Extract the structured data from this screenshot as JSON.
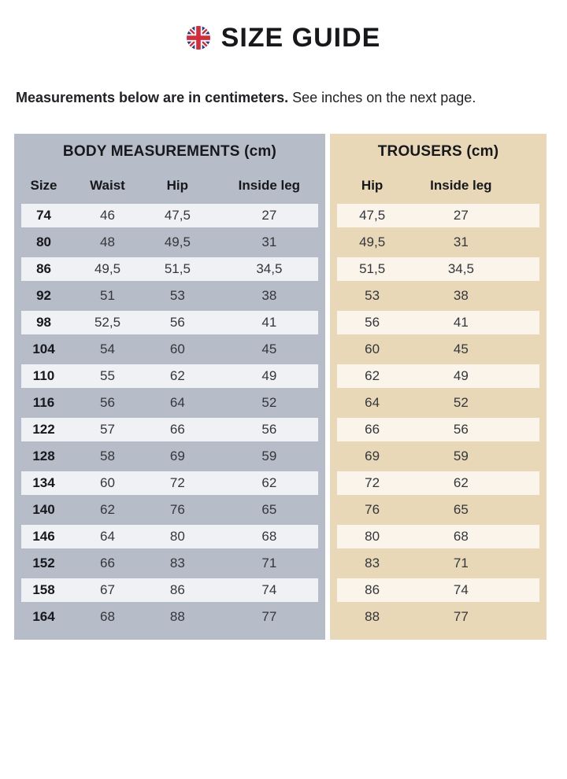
{
  "header": {
    "title": "SIZE GUIDE",
    "flag_icon": "uk-flag-round-icon"
  },
  "intro": {
    "bold": "Measurements below are in centimeters.",
    "regular": " See inches on the next page."
  },
  "colors": {
    "body_section_bg": "#b6bcc8",
    "body_row_stripe": "#eff1f4",
    "trousers_section_bg": "#e9d8b8",
    "trousers_row_stripe": "#faf4ea",
    "ink": "#17181b",
    "flag_blue": "#26397a",
    "flag_red": "#d22d3f"
  },
  "table": {
    "body_section_title": "BODY MEASUREMENTS (cm)",
    "trousers_section_title": "TROUSERS (cm)",
    "body_columns": [
      "Size",
      "Waist",
      "Hip",
      "Inside leg"
    ],
    "trousers_columns": [
      "Hip",
      "Inside leg"
    ],
    "rows": [
      {
        "size": "74",
        "waist": "46",
        "hip": "47,5",
        "inside_leg": "27",
        "trousers_hip": "47,5",
        "trousers_inside_leg": "27"
      },
      {
        "size": "80",
        "waist": "48",
        "hip": "49,5",
        "inside_leg": "31",
        "trousers_hip": "49,5",
        "trousers_inside_leg": "31"
      },
      {
        "size": "86",
        "waist": "49,5",
        "hip": "51,5",
        "inside_leg": "34,5",
        "trousers_hip": "51,5",
        "trousers_inside_leg": "34,5"
      },
      {
        "size": "92",
        "waist": "51",
        "hip": "53",
        "inside_leg": "38",
        "trousers_hip": "53",
        "trousers_inside_leg": "38"
      },
      {
        "size": "98",
        "waist": "52,5",
        "hip": "56",
        "inside_leg": "41",
        "trousers_hip": "56",
        "trousers_inside_leg": "41"
      },
      {
        "size": "104",
        "waist": "54",
        "hip": "60",
        "inside_leg": "45",
        "trousers_hip": "60",
        "trousers_inside_leg": "45"
      },
      {
        "size": "110",
        "waist": "55",
        "hip": "62",
        "inside_leg": "49",
        "trousers_hip": "62",
        "trousers_inside_leg": "49"
      },
      {
        "size": "116",
        "waist": "56",
        "hip": "64",
        "inside_leg": "52",
        "trousers_hip": "64",
        "trousers_inside_leg": "52"
      },
      {
        "size": "122",
        "waist": "57",
        "hip": "66",
        "inside_leg": "56",
        "trousers_hip": "66",
        "trousers_inside_leg": "56"
      },
      {
        "size": "128",
        "waist": "58",
        "hip": "69",
        "inside_leg": "59",
        "trousers_hip": "69",
        "trousers_inside_leg": "59"
      },
      {
        "size": "134",
        "waist": "60",
        "hip": "72",
        "inside_leg": "62",
        "trousers_hip": "72",
        "trousers_inside_leg": "62"
      },
      {
        "size": "140",
        "waist": "62",
        "hip": "76",
        "inside_leg": "65",
        "trousers_hip": "76",
        "trousers_inside_leg": "65"
      },
      {
        "size": "146",
        "waist": "64",
        "hip": "80",
        "inside_leg": "68",
        "trousers_hip": "80",
        "trousers_inside_leg": "68"
      },
      {
        "size": "152",
        "waist": "66",
        "hip": "83",
        "inside_leg": "71",
        "trousers_hip": "83",
        "trousers_inside_leg": "71"
      },
      {
        "size": "158",
        "waist": "67",
        "hip": "86",
        "inside_leg": "74",
        "trousers_hip": "86",
        "trousers_inside_leg": "74"
      },
      {
        "size": "164",
        "waist": "68",
        "hip": "88",
        "inside_leg": "77",
        "trousers_hip": "88",
        "trousers_inside_leg": "77"
      }
    ]
  }
}
